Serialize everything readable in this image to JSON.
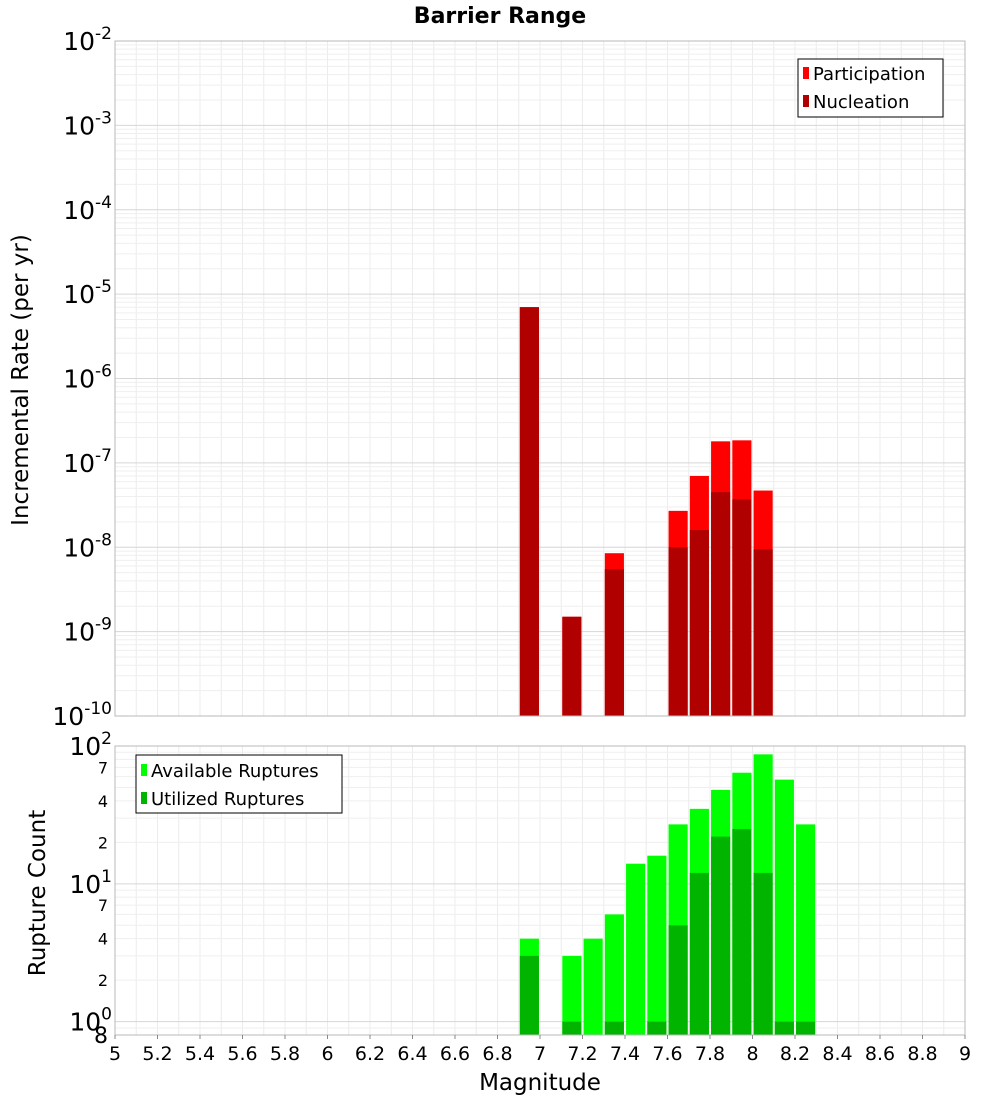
{
  "chart_data": [
    {
      "type": "bar",
      "title": "Barrier Range",
      "ylabel": "Incremental Rate (per yr)",
      "xlabel": "",
      "yscale": "log",
      "ylim": [
        1e-10,
        0.01
      ],
      "xlim": [
        5,
        9
      ],
      "y_tick_bases": [
        "10",
        "10",
        "10",
        "10",
        "10",
        "10",
        "10",
        "10",
        "10"
      ],
      "y_tick_exponents": [
        "-10",
        "-9",
        "-8",
        "-7",
        "-6",
        "-5",
        "-4",
        "-3",
        "-2"
      ],
      "bar_width": 0.09,
      "grid": true,
      "legend_position": "top-right",
      "series": [
        {
          "name": "Participation",
          "color": "#ff0000",
          "x": [
            6.95,
            7.15,
            7.35,
            7.65,
            7.75,
            7.85,
            7.95,
            8.05
          ],
          "values": [
            7e-06,
            1.5e-09,
            8.5e-09,
            2.7e-08,
            7e-08,
            1.8e-07,
            1.85e-07,
            4.7e-08
          ]
        },
        {
          "name": "Nucleation",
          "color": "#b00000",
          "x": [
            6.95,
            7.15,
            7.35,
            7.65,
            7.75,
            7.85,
            7.95,
            8.05
          ],
          "values": [
            7e-06,
            1.5e-09,
            5.5e-09,
            1e-08,
            1.6e-08,
            4.5e-08,
            3.7e-08,
            9.5e-09
          ]
        }
      ]
    },
    {
      "type": "bar",
      "title": "",
      "ylabel": "Rupture Count",
      "xlabel": "Magnitude",
      "yscale": "log",
      "ylim": [
        0.8,
        100
      ],
      "xlim": [
        5,
        9
      ],
      "x_ticks": [
        "5",
        "5.2",
        "5.4",
        "5.6",
        "5.8",
        "6",
        "6.2",
        "6.4",
        "6.6",
        "6.8",
        "7",
        "7.2",
        "7.4",
        "7.6",
        "7.8",
        "8",
        "8.2",
        "8.4",
        "8.6",
        "8.8",
        "9"
      ],
      "y_major_tick_bases": [
        "10",
        "10",
        "10"
      ],
      "y_major_tick_exponents": [
        "0",
        "1",
        "2"
      ],
      "y_bottom_tick_label": "8",
      "y_minor_ticks": [
        "2",
        "4",
        "7",
        "2",
        "4",
        "7"
      ],
      "bar_width": 0.09,
      "grid": true,
      "legend_position": "top-left",
      "series": [
        {
          "name": "Available Ruptures",
          "color": "#00ff00",
          "x": [
            6.95,
            7.15,
            7.25,
            7.35,
            7.45,
            7.55,
            7.65,
            7.75,
            7.85,
            7.95,
            8.05,
            8.15,
            8.25
          ],
          "values": [
            4,
            3,
            4,
            6,
            14,
            16,
            27,
            35,
            48,
            64,
            87,
            57,
            27
          ]
        },
        {
          "name": "Utilized Ruptures",
          "color": "#00b400",
          "x": [
            6.95,
            7.15,
            7.25,
            7.35,
            7.45,
            7.55,
            7.65,
            7.75,
            7.85,
            7.95,
            8.05,
            8.15,
            8.25
          ],
          "values": [
            3,
            1,
            0,
            1,
            0,
            1,
            5,
            12,
            22,
            25,
            12,
            1,
            1
          ]
        }
      ]
    }
  ]
}
